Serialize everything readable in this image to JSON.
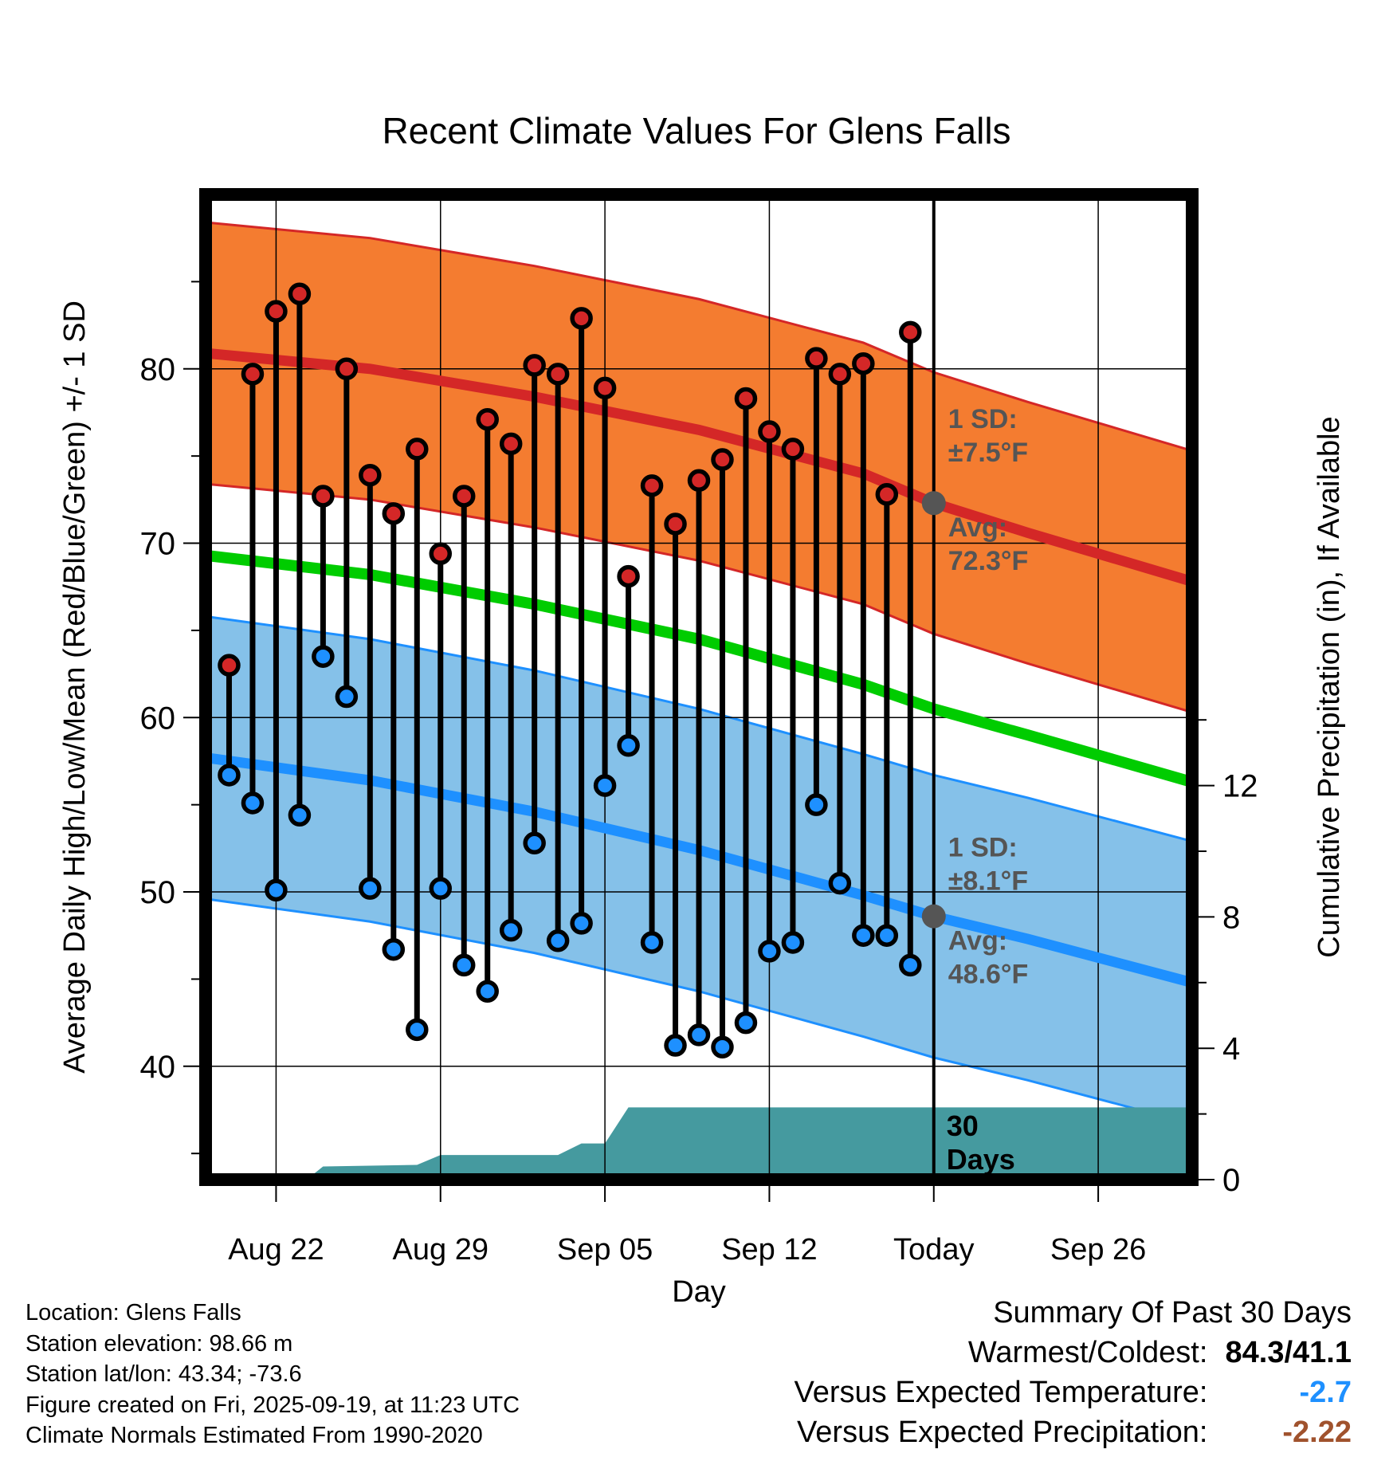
{
  "title": "Recent Climate Values For Glens Falls",
  "colors": {
    "high_band": "#f47c30",
    "high_avg": "#d42727",
    "low_band": "#85c1e9",
    "low_avg": "#1e90ff",
    "mean": "#00cc00",
    "precip": "#459a9f",
    "high_marker": "#d42727",
    "low_marker": "#1e90ff",
    "annotation": "#555555",
    "temp_anomaly": "#1e90ff",
    "precip_anomaly": "#a0522d"
  },
  "chart_data": {
    "type": "line",
    "title": "Recent Climate Values For Glens Falls",
    "xlabel": "Day",
    "ylabel": "Average Daily High/Low/Mean (Red/Blue/Green) +/- 1 SD",
    "y2label": "Cumulative Precipitation (in), If Available",
    "xlim": [
      0,
      42
    ],
    "ylim": [
      33.5,
      90
    ],
    "y2lim": [
      0,
      30
    ],
    "yticks": [
      40,
      50,
      60,
      70,
      80
    ],
    "y2ticks": [
      0,
      4,
      8,
      12
    ],
    "xticks": [
      {
        "day": 3,
        "label": "Aug 22"
      },
      {
        "day": 10,
        "label": "Aug 29"
      },
      {
        "day": 17,
        "label": "Sep 05"
      },
      {
        "day": 24,
        "label": "Sep 12"
      },
      {
        "day": 31,
        "label": "Today"
      },
      {
        "day": 38,
        "label": "Sep 26"
      }
    ],
    "today_day": 31,
    "today_label_box": "30\nDays",
    "today_label_lines": [
      "30",
      "Days"
    ],
    "normal_high": [
      {
        "x": 0,
        "y": 80.9
      },
      {
        "x": 7,
        "y": 80.0
      },
      {
        "x": 14,
        "y": 78.4
      },
      {
        "x": 21,
        "y": 76.5
      },
      {
        "x": 28,
        "y": 74.0
      },
      {
        "x": 31,
        "y": 72.3
      },
      {
        "x": 35,
        "y": 70.6
      },
      {
        "x": 42,
        "y": 67.8
      }
    ],
    "normal_low": [
      {
        "x": 0,
        "y": 57.7
      },
      {
        "x": 7,
        "y": 56.4
      },
      {
        "x": 14,
        "y": 54.6
      },
      {
        "x": 21,
        "y": 52.4
      },
      {
        "x": 28,
        "y": 49.8
      },
      {
        "x": 31,
        "y": 48.6
      },
      {
        "x": 35,
        "y": 47.3
      },
      {
        "x": 42,
        "y": 44.8
      }
    ],
    "normal_mean": [
      {
        "x": 0,
        "y": 69.3
      },
      {
        "x": 7,
        "y": 68.2
      },
      {
        "x": 14,
        "y": 66.5
      },
      {
        "x": 21,
        "y": 64.5
      },
      {
        "x": 28,
        "y": 61.9
      },
      {
        "x": 31,
        "y": 60.5
      },
      {
        "x": 35,
        "y": 59.0
      },
      {
        "x": 42,
        "y": 56.3
      }
    ],
    "high_sd": 7.5,
    "low_sd": 8.1,
    "daily": [
      {
        "day": 1,
        "high": 63.0,
        "low": 56.7
      },
      {
        "day": 2,
        "high": 79.7,
        "low": 55.1
      },
      {
        "day": 3,
        "high": 83.3,
        "low": 50.1
      },
      {
        "day": 4,
        "high": 84.3,
        "low": 54.4
      },
      {
        "day": 5,
        "high": 72.7,
        "low": 63.5
      },
      {
        "day": 6,
        "high": 80.0,
        "low": 61.2
      },
      {
        "day": 7,
        "high": 73.9,
        "low": 50.2
      },
      {
        "day": 8,
        "high": 71.7,
        "low": 46.7
      },
      {
        "day": 9,
        "high": 75.4,
        "low": 42.1
      },
      {
        "day": 10,
        "high": 69.4,
        "low": 50.2
      },
      {
        "day": 11,
        "high": 72.7,
        "low": 45.8
      },
      {
        "day": 12,
        "high": 77.1,
        "low": 44.3
      },
      {
        "day": 13,
        "high": 75.7,
        "low": 47.8
      },
      {
        "day": 14,
        "high": 80.2,
        "low": 52.8
      },
      {
        "day": 15,
        "high": 79.7,
        "low": 47.2
      },
      {
        "day": 16,
        "high": 82.9,
        "low": 48.2
      },
      {
        "day": 17,
        "high": 78.9,
        "low": 56.1
      },
      {
        "day": 18,
        "high": 68.1,
        "low": 58.4
      },
      {
        "day": 19,
        "high": 73.3,
        "low": 47.1
      },
      {
        "day": 20,
        "high": 71.1,
        "low": 41.2
      },
      {
        "day": 21,
        "high": 73.6,
        "low": 41.8
      },
      {
        "day": 22,
        "high": 74.8,
        "low": 41.1
      },
      {
        "day": 23,
        "high": 78.3,
        "low": 42.5
      },
      {
        "day": 24,
        "high": 76.4,
        "low": 46.6
      },
      {
        "day": 25,
        "high": 75.4,
        "low": 47.1
      },
      {
        "day": 26,
        "high": 80.6,
        "low": 55.0
      },
      {
        "day": 27,
        "high": 79.7,
        "low": 50.5
      },
      {
        "day": 28,
        "high": 80.3,
        "low": 47.5
      },
      {
        "day": 29,
        "high": 72.8,
        "low": 47.5
      },
      {
        "day": 30,
        "high": 82.1,
        "low": 45.8
      }
    ],
    "precip_cum": [
      {
        "x": 0,
        "y": 0
      },
      {
        "x": 4.3,
        "y": 0
      },
      {
        "x": 5,
        "y": 0.4
      },
      {
        "x": 9,
        "y": 0.45
      },
      {
        "x": 10,
        "y": 0.75
      },
      {
        "x": 15,
        "y": 0.75
      },
      {
        "x": 16,
        "y": 1.1
      },
      {
        "x": 17,
        "y": 1.1
      },
      {
        "x": 18,
        "y": 2.2
      },
      {
        "x": 42,
        "y": 2.2
      }
    ],
    "annotations": {
      "high_sd_label": "1 SD:",
      "high_sd_value": "±7.5°F",
      "high_avg_label": "Avg:",
      "high_avg_value": "72.3°F",
      "low_sd_label": "1 SD:",
      "low_sd_value": "±8.1°F",
      "low_avg_label": "Avg:",
      "low_avg_value": "48.6°F"
    }
  },
  "info": {
    "location": "Location: Glens Falls",
    "elevation": "Station elevation: 98.66 m",
    "latlon": "Station lat/lon: 43.34; -73.6",
    "created": "Figure created on Fri, 2025-09-19, at 11:23 UTC",
    "normals": "Climate Normals Estimated From 1990-2020"
  },
  "summary": {
    "title": "Summary Of Past 30 Days",
    "warmest_coldest_label": "Warmest/Coldest:",
    "warmest": "84.3",
    "separator": "/",
    "coldest": "41.1",
    "temp_label": "Versus Expected Temperature:",
    "temp_value": "-2.7",
    "precip_label": "Versus Expected Precipitation:",
    "precip_value": "-2.22"
  }
}
